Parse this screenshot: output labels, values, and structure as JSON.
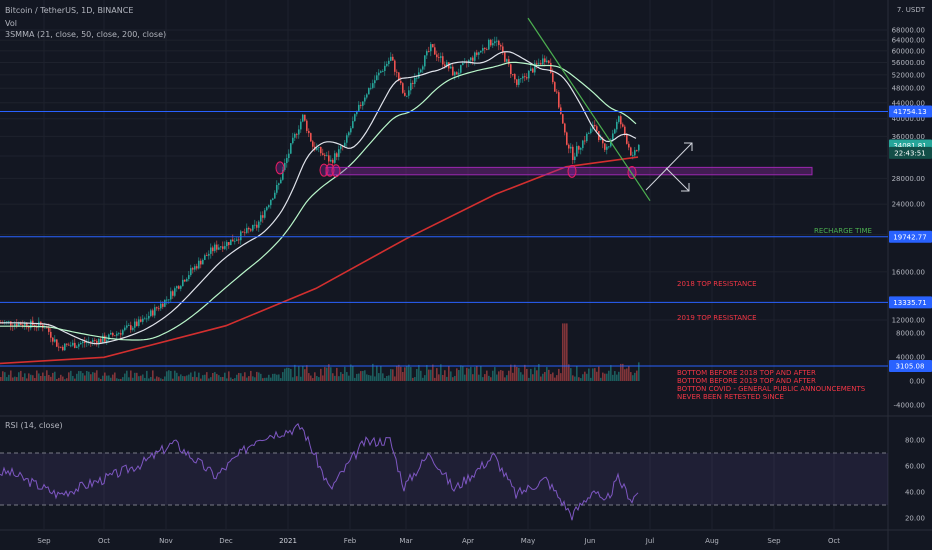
{
  "header": {
    "symbol_line": "Bitcoin / TetherUS, 1D, BINANCE",
    "vol_label": "Vol",
    "ma_label": "3SMMA (21, close, 50, close, 200, close)",
    "rsi_label": "RSI (14, close)",
    "currency": "USDT"
  },
  "colors": {
    "background": "#131722",
    "up_candle": "#26a69a",
    "down_candle": "#ef5350",
    "ma21": "#e0e3eb",
    "ma50": "#b9f6ca",
    "ma200": "#d32f2f",
    "h_line": "#2962ff",
    "trend_line": "#4caf50",
    "zone": "#9c27b0",
    "rsi": "#7e57c2",
    "annotation_red": "#f23645",
    "annotation_green": "#4caf50"
  },
  "chart_data": [
    {
      "type": "candlestick",
      "title": "Bitcoin / TetherUS, 1D, BINANCE",
      "price_scale": "log",
      "y_ticks": [
        12000,
        16000,
        20000,
        24000,
        28000,
        32000,
        36000,
        40000,
        44000,
        48000,
        52000,
        56000,
        60000,
        64000,
        68000
      ],
      "x_ticks": [
        "Sep",
        "Oct",
        "Nov",
        "Dec",
        "2021",
        "Feb",
        "Mar",
        "Apr",
        "May",
        "Jun",
        "Jul",
        "Aug",
        "Sep",
        "Oct"
      ],
      "price_path": [
        [
          "2020-08-15",
          11800
        ],
        [
          "2020-09-01",
          11600
        ],
        [
          "2020-09-08",
          10200
        ],
        [
          "2020-10-01",
          10700
        ],
        [
          "2020-10-20",
          11900
        ],
        [
          "2020-11-01",
          13600
        ],
        [
          "2020-11-25",
          18500
        ],
        [
          "2020-12-01",
          19000
        ],
        [
          "2020-12-16",
          21000
        ],
        [
          "2020-12-27",
          27000
        ],
        [
          "2021-01-08",
          40500
        ],
        [
          "2021-01-13",
          34000
        ],
        [
          "2021-01-22",
          31000
        ],
        [
          "2021-01-29",
          34300
        ],
        [
          "2021-02-08",
          46000
        ],
        [
          "2021-02-21",
          57500
        ],
        [
          "2021-02-28",
          45000
        ],
        [
          "2021-03-13",
          61000
        ],
        [
          "2021-03-25",
          52000
        ],
        [
          "2021-04-14",
          64500
        ],
        [
          "2021-04-25",
          49000
        ],
        [
          "2021-05-10",
          58000
        ],
        [
          "2021-05-19",
          36000
        ],
        [
          "2021-05-23",
          32000
        ],
        [
          "2021-06-03",
          38500
        ],
        [
          "2021-06-08",
          32500
        ],
        [
          "2021-06-15",
          40000
        ],
        [
          "2021-06-22",
          31500
        ],
        [
          "2021-06-25",
          34081
        ]
      ],
      "price_labels": [
        {
          "text": "41754.13",
          "value": 41754.13,
          "kind": "line"
        },
        {
          "text": "34081.81",
          "value": 34081.81,
          "kind": "last"
        },
        {
          "text": "22:43:51",
          "value": 32600,
          "kind": "countdown"
        },
        {
          "text": "19742.77",
          "value": 19742.77,
          "kind": "line"
        },
        {
          "text": "13335.71",
          "value": 13335.71,
          "kind": "line"
        }
      ],
      "horizontal_lines": [
        41754.13,
        19742.77,
        13335.71
      ],
      "support_zone": {
        "from": "2021-01-20",
        "to": "2021-09-20",
        "low": 28600,
        "high": 29900
      },
      "trend_line": {
        "from": [
          "2021-05-01",
          73000
        ],
        "to": [
          "2021-07-01",
          24500
        ]
      },
      "annotations": [
        {
          "text": "RECHARGE TIME",
          "color": "#4caf50"
        },
        {
          "text": "2018 TOP RESISTANCE",
          "color": "#f23645"
        },
        {
          "text": "2019 TOP RESISTANCE",
          "color": "#f23645"
        },
        {
          "text": "BOTTOM BEFORE 2018 TOP AND AFTER",
          "color": "#f23645"
        },
        {
          "text": "BOTTOM BEFORE 2019 TOP AND AFTER",
          "color": "#f23645"
        },
        {
          "text": "BOTTON COVID - GENERAL PUBLIC ANNOUNCEMENTS",
          "color": "#f23645"
        },
        {
          "text": "NEVER BEEN RETESTED SINCE",
          "color": "#f23645"
        }
      ]
    },
    {
      "type": "bar",
      "title": "Vol",
      "y_ticks": [
        8000,
        4000,
        0,
        -4000
      ],
      "y_tick_labels": [
        "8000.00",
        "4000.00",
        "0.00",
        "-4000.00"
      ],
      "price_label": {
        "text": "3105.08",
        "value": 3105.08
      }
    },
    {
      "type": "line",
      "title": "RSI (14, close)",
      "y_ticks": [
        80,
        60,
        40,
        20
      ],
      "y_tick_labels": [
        "80.00",
        "60.00",
        "40.00",
        "20.00"
      ],
      "bands": [
        70,
        30
      ],
      "rsi_path": [
        [
          "2020-08-15",
          55
        ],
        [
          "2020-09-08",
          38
        ],
        [
          "2020-10-01",
          50
        ],
        [
          "2020-10-20",
          62
        ],
        [
          "2020-11-05",
          78
        ],
        [
          "2020-11-26",
          52
        ],
        [
          "2020-12-17",
          82
        ],
        [
          "2021-01-08",
          90
        ],
        [
          "2021-01-22",
          42
        ],
        [
          "2021-02-08",
          78
        ],
        [
          "2021-02-21",
          80
        ],
        [
          "2021-02-28",
          44
        ],
        [
          "2021-03-13",
          70
        ],
        [
          "2021-03-25",
          42
        ],
        [
          "2021-04-14",
          68
        ],
        [
          "2021-04-25",
          38
        ],
        [
          "2021-05-10",
          50
        ],
        [
          "2021-05-23",
          22
        ],
        [
          "2021-06-03",
          42
        ],
        [
          "2021-06-08",
          30
        ],
        [
          "2021-06-15",
          50
        ],
        [
          "2021-06-22",
          34
        ],
        [
          "2021-06-25",
          40
        ]
      ]
    }
  ]
}
